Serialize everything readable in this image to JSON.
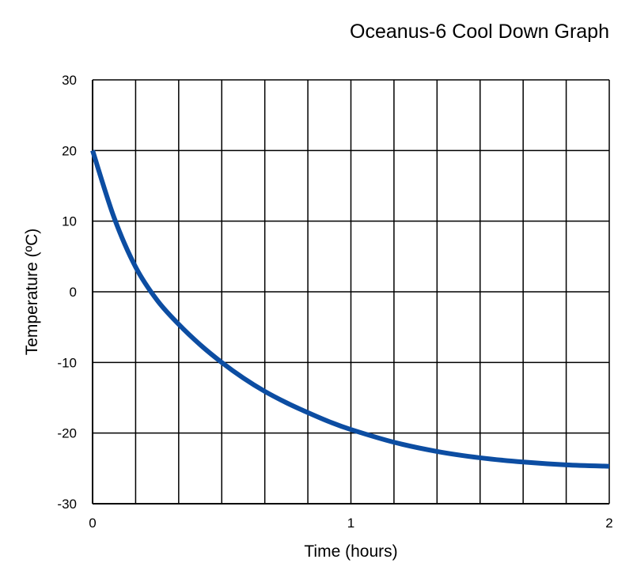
{
  "chart_data": {
    "type": "line",
    "title": "Oceanus-6 Cool Down Graph",
    "xlabel": "Time (hours)",
    "ylabel": "Temperature (ºC)",
    "xlim": [
      0,
      2
    ],
    "ylim": [
      -30,
      30
    ],
    "x_ticks": [
      0,
      1,
      2
    ],
    "x_tick_labels": [
      "0",
      "1",
      "2"
    ],
    "y_ticks": [
      30,
      20,
      10,
      0,
      -10,
      -20,
      -30
    ],
    "y_tick_labels": [
      "30",
      "20",
      "10",
      "0",
      "-10",
      "-20",
      "-30"
    ],
    "grid": true,
    "x_grid_step": 0.1667,
    "y_grid_step": 10,
    "series_color": "#0c4da2",
    "series": [
      {
        "x": [
          0,
          0.0833,
          0.1667,
          0.25,
          0.3333,
          0.4167,
          0.5,
          0.5833,
          0.6667,
          0.75,
          0.8333,
          0.9167,
          1.0,
          1.1667,
          1.3333,
          1.5,
          1.6667,
          1.8333,
          2.0
        ],
        "y": [
          20,
          10.5,
          3.5,
          -1.2,
          -4.6,
          -7.5,
          -10,
          -12.2,
          -14.1,
          -15.7,
          -17.1,
          -18.4,
          -19.5,
          -21.3,
          -22.6,
          -23.5,
          -24.1,
          -24.5,
          -24.7
        ]
      }
    ]
  }
}
